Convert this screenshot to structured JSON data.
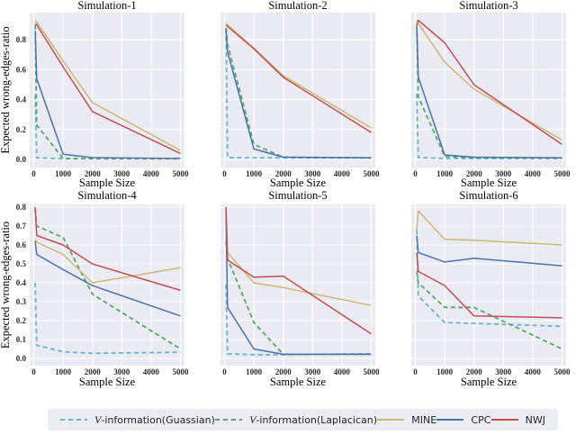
{
  "figure": {
    "xlabel": "Sample Size",
    "ylabel": "Expected wrong-edges-ratio",
    "plot_background": "#eaeaf2",
    "grid_color": "#ffffff"
  },
  "palette": {
    "v_gaussian": {
      "color": "#64b5cd",
      "dash": "5,3.5"
    },
    "v_laplacian": {
      "color": "#55a868",
      "dash": "5,3.5"
    },
    "mine": {
      "color": "#ccb974",
      "dash": ""
    },
    "cpc": {
      "color": "#4c72b0",
      "dash": ""
    },
    "nwj": {
      "color": "#c44e52",
      "dash": ""
    }
  },
  "legend": {
    "items": [
      {
        "key": "v_gaussian",
        "prefix": "V",
        "label": "-information(Guassian)"
      },
      {
        "key": "v_laplacian",
        "prefix": "V",
        "label": "-information(Laplacican)"
      },
      {
        "key": "mine",
        "prefix": "",
        "label": "MINE"
      },
      {
        "key": "cpc",
        "prefix": "",
        "label": "CPC"
      },
      {
        "key": "nwj",
        "prefix": "",
        "label": "NWJ"
      }
    ]
  },
  "chart_data": [
    {
      "type": "line",
      "title": "Simulation-1",
      "xlabel": "Sample Size",
      "ylabel": "Expected wrong-edges-ratio",
      "grid": true,
      "x_ticks": [
        0,
        1000,
        2000,
        3000,
        4000,
        5000
      ],
      "y_ticks": [
        0.0,
        0.2,
        0.4,
        0.6,
        0.8
      ],
      "show_y_tick_labels": true,
      "ylim": [
        -0.05,
        0.98
      ],
      "xlim": [
        -150,
        5200
      ],
      "x": [
        50,
        100,
        1000,
        2000,
        5000
      ],
      "series": [
        {
          "name": "V-information(Guassian)",
          "key": "v_gaussian",
          "y": [
            0.43,
            0.01,
            0.005,
            0.005,
            0.005
          ]
        },
        {
          "name": "V-information(Laplacican)",
          "key": "v_laplacian",
          "y": [
            0.9,
            0.23,
            0.006,
            0.005,
            0.005
          ]
        },
        {
          "name": "MINE",
          "key": "mine",
          "y": [
            0.93,
            0.92,
            0.66,
            0.38,
            0.06
          ]
        },
        {
          "name": "CPC",
          "key": "cpc",
          "y": [
            0.86,
            0.54,
            0.035,
            0.012,
            0.006
          ]
        },
        {
          "name": "NWJ",
          "key": "nwj",
          "y": [
            0.91,
            0.9,
            0.62,
            0.32,
            0.04
          ]
        }
      ]
    },
    {
      "type": "line",
      "title": "Simulation-2",
      "xlabel": "Sample Size",
      "ylabel": "",
      "grid": true,
      "x_ticks": [
        0,
        1000,
        2000,
        3000,
        4000,
        5000
      ],
      "y_ticks": [
        0.0,
        0.2,
        0.4,
        0.6,
        0.8
      ],
      "show_y_tick_labels": false,
      "ylim": [
        -0.05,
        0.98
      ],
      "xlim": [
        -150,
        5200
      ],
      "x": [
        50,
        100,
        1000,
        2000,
        5000
      ],
      "series": [
        {
          "name": "V-information(Guassian)",
          "key": "v_gaussian",
          "y": [
            0.87,
            0.012,
            0.01,
            0.01,
            0.01
          ]
        },
        {
          "name": "V-information(Laplacican)",
          "key": "v_laplacian",
          "y": [
            0.88,
            0.77,
            0.1,
            0.015,
            0.01
          ]
        },
        {
          "name": "MINE",
          "key": "mine",
          "y": [
            0.91,
            0.9,
            0.745,
            0.56,
            0.21
          ]
        },
        {
          "name": "CPC",
          "key": "cpc",
          "y": [
            0.87,
            0.72,
            0.07,
            0.015,
            0.01
          ]
        },
        {
          "name": "NWJ",
          "key": "nwj",
          "y": [
            0.9,
            0.89,
            0.74,
            0.55,
            0.18
          ]
        }
      ]
    },
    {
      "type": "line",
      "title": "Simulation-3",
      "xlabel": "Sample Size",
      "ylabel": "",
      "grid": true,
      "x_ticks": [
        0,
        1000,
        2000,
        3000,
        4000,
        5000
      ],
      "y_ticks": [
        0.0,
        0.2,
        0.4,
        0.6,
        0.8
      ],
      "show_y_tick_labels": false,
      "ylim": [
        -0.05,
        0.98
      ],
      "xlim": [
        -150,
        5200
      ],
      "x": [
        50,
        100,
        1000,
        2000,
        5000
      ],
      "series": [
        {
          "name": "V-information(Guassian)",
          "key": "v_gaussian",
          "y": [
            0.44,
            0.012,
            0.006,
            0.006,
            0.006
          ]
        },
        {
          "name": "V-information(Laplacican)",
          "key": "v_laplacian",
          "y": [
            0.9,
            0.42,
            0.02,
            0.01,
            0.01
          ]
        },
        {
          "name": "MINE",
          "key": "mine",
          "y": [
            0.93,
            0.91,
            0.65,
            0.47,
            0.13
          ]
        },
        {
          "name": "CPC",
          "key": "cpc",
          "y": [
            0.88,
            0.55,
            0.03,
            0.015,
            0.01
          ]
        },
        {
          "name": "NWJ",
          "key": "nwj",
          "y": [
            0.9,
            0.93,
            0.78,
            0.5,
            0.1
          ]
        }
      ]
    },
    {
      "type": "line",
      "title": "Simulation-4",
      "xlabel": "Sample Size",
      "ylabel": "Expected wrong-edges-ratio",
      "grid": true,
      "x_ticks": [
        0,
        1000,
        2000,
        3000,
        4000,
        5000
      ],
      "y_ticks": [
        0.0,
        0.1,
        0.2,
        0.3,
        0.4,
        0.5,
        0.6,
        0.7,
        0.8
      ],
      "show_y_tick_labels": true,
      "ylim": [
        -0.04,
        0.85
      ],
      "xlim": [
        -150,
        5200
      ],
      "x": [
        50,
        100,
        1000,
        2000,
        5000
      ],
      "series": [
        {
          "name": "V-information(Guassian)",
          "key": "v_gaussian",
          "y": [
            0.4,
            0.07,
            0.035,
            0.027,
            0.033
          ]
        },
        {
          "name": "V-information(Laplacican)",
          "key": "v_laplacian",
          "y": [
            0.79,
            0.7,
            0.64,
            0.34,
            0.05
          ]
        },
        {
          "name": "MINE",
          "key": "mine",
          "y": [
            0.63,
            0.615,
            0.55,
            0.4,
            0.48
          ]
        },
        {
          "name": "CPC",
          "key": "cpc",
          "y": [
            0.62,
            0.55,
            0.47,
            0.385,
            0.225
          ]
        },
        {
          "name": "NWJ",
          "key": "nwj",
          "y": [
            0.8,
            0.65,
            0.6,
            0.5,
            0.36
          ]
        }
      ]
    },
    {
      "type": "line",
      "title": "Simulation-5",
      "xlabel": "Sample Size",
      "ylabel": "",
      "grid": true,
      "x_ticks": [
        0,
        1000,
        2000,
        3000,
        4000,
        5000
      ],
      "y_ticks": [
        0.0,
        0.1,
        0.2,
        0.3,
        0.4,
        0.5,
        0.6,
        0.7,
        0.8
      ],
      "show_y_tick_labels": false,
      "ylim": [
        -0.04,
        0.85
      ],
      "xlim": [
        -150,
        5200
      ],
      "x": [
        50,
        100,
        1000,
        2000,
        5000
      ],
      "series": [
        {
          "name": "V-information(Guassian)",
          "key": "v_gaussian",
          "y": [
            0.39,
            0.025,
            0.02,
            0.02,
            0.025
          ]
        },
        {
          "name": "V-information(Laplacican)",
          "key": "v_laplacian",
          "y": [
            0.62,
            0.53,
            0.19,
            0.022,
            0.022
          ]
        },
        {
          "name": "MINE",
          "key": "mine",
          "y": [
            0.79,
            0.56,
            0.4,
            0.375,
            0.28
          ]
        },
        {
          "name": "CPC",
          "key": "cpc",
          "y": [
            0.78,
            0.27,
            0.05,
            0.022,
            0.022
          ]
        },
        {
          "name": "NWJ",
          "key": "nwj",
          "y": [
            0.8,
            0.52,
            0.43,
            0.435,
            0.13
          ]
        }
      ]
    },
    {
      "type": "line",
      "title": "Simulation-6",
      "xlabel": "Sample Size",
      "ylabel": "",
      "grid": true,
      "x_ticks": [
        0,
        1000,
        2000,
        3000,
        4000,
        5000
      ],
      "y_ticks": [
        0.0,
        0.1,
        0.2,
        0.3,
        0.4,
        0.5,
        0.6,
        0.7,
        0.8
      ],
      "show_y_tick_labels": false,
      "ylim": [
        -0.04,
        0.85
      ],
      "xlim": [
        -150,
        5200
      ],
      "x": [
        50,
        100,
        1000,
        2000,
        5000
      ],
      "series": [
        {
          "name": "V-information(Guassian)",
          "key": "v_gaussian",
          "y": [
            0.68,
            0.33,
            0.19,
            0.185,
            0.17
          ]
        },
        {
          "name": "V-information(Laplacican)",
          "key": "v_laplacian",
          "y": [
            0.46,
            0.4,
            0.27,
            0.27,
            0.05
          ]
        },
        {
          "name": "MINE",
          "key": "mine",
          "y": [
            0.68,
            0.78,
            0.63,
            0.625,
            0.6
          ]
        },
        {
          "name": "CPC",
          "key": "cpc",
          "y": [
            0.65,
            0.56,
            0.51,
            0.53,
            0.49
          ]
        },
        {
          "name": "NWJ",
          "key": "nwj",
          "y": [
            0.56,
            0.46,
            0.385,
            0.225,
            0.215
          ]
        }
      ]
    }
  ]
}
